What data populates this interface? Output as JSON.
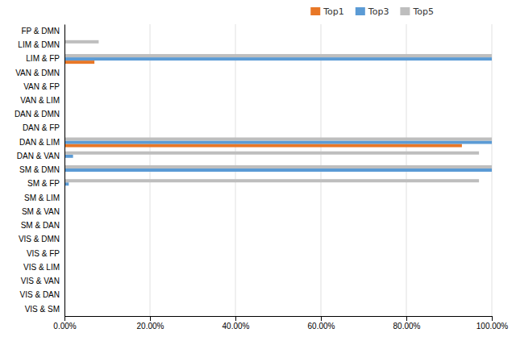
{
  "chart_data": {
    "type": "bar",
    "orientation": "horizontal",
    "categories": [
      "FP & DMN",
      "LIM & DMN",
      "LIM & FP",
      "VAN & DMN",
      "VAN & FP",
      "VAN & LIM",
      "DAN & DMN",
      "DAN & FP",
      "DAN & LIM",
      "DAN & VAN",
      "SM & DMN",
      "SM & FP",
      "SM & LIM",
      "SM & VAN",
      "SM & DAN",
      "VIS & DMN",
      "VIS & FP",
      "VIS & LIM",
      "VIS & VAN",
      "VIS & DAN",
      "VIS & SM"
    ],
    "series": [
      {
        "name": "Top1",
        "color": "#E87726",
        "values": [
          0.0,
          0.0,
          7.0,
          0.0,
          0.0,
          0.0,
          0.0,
          0.0,
          93.0,
          0.0,
          0.0,
          0.0,
          0.0,
          0.0,
          0.0,
          0.0,
          0.0,
          0.0,
          0.0,
          0.0,
          0.0
        ]
      },
      {
        "name": "Top3",
        "color": "#5B9BD5",
        "values": [
          0.0,
          0.0,
          100.0,
          0.0,
          0.0,
          0.0,
          0.0,
          0.0,
          100.0,
          2.0,
          100.0,
          1.0,
          0.0,
          0.0,
          0.0,
          0.0,
          0.0,
          0.0,
          0.0,
          0.0,
          0.0
        ]
      },
      {
        "name": "Top5",
        "color": "#BEBEBE",
        "values": [
          0.0,
          8.0,
          100.0,
          0.0,
          0.0,
          0.0,
          0.0,
          0.0,
          100.0,
          97.0,
          100.0,
          97.0,
          0.0,
          0.0,
          0.0,
          0.0,
          0.0,
          0.0,
          0.0,
          0.0,
          0.0
        ]
      }
    ],
    "xlim": [
      0,
      100
    ],
    "xticks": [
      {
        "value": 0,
        "label": "0.00%"
      },
      {
        "value": 20,
        "label": "20.00%"
      },
      {
        "value": 40,
        "label": "40.00%"
      },
      {
        "value": 60,
        "label": "60.00%"
      },
      {
        "value": 80,
        "label": "80.00%"
      },
      {
        "value": 100,
        "label": "100.00%"
      }
    ],
    "grid": true,
    "legend": "top"
  }
}
